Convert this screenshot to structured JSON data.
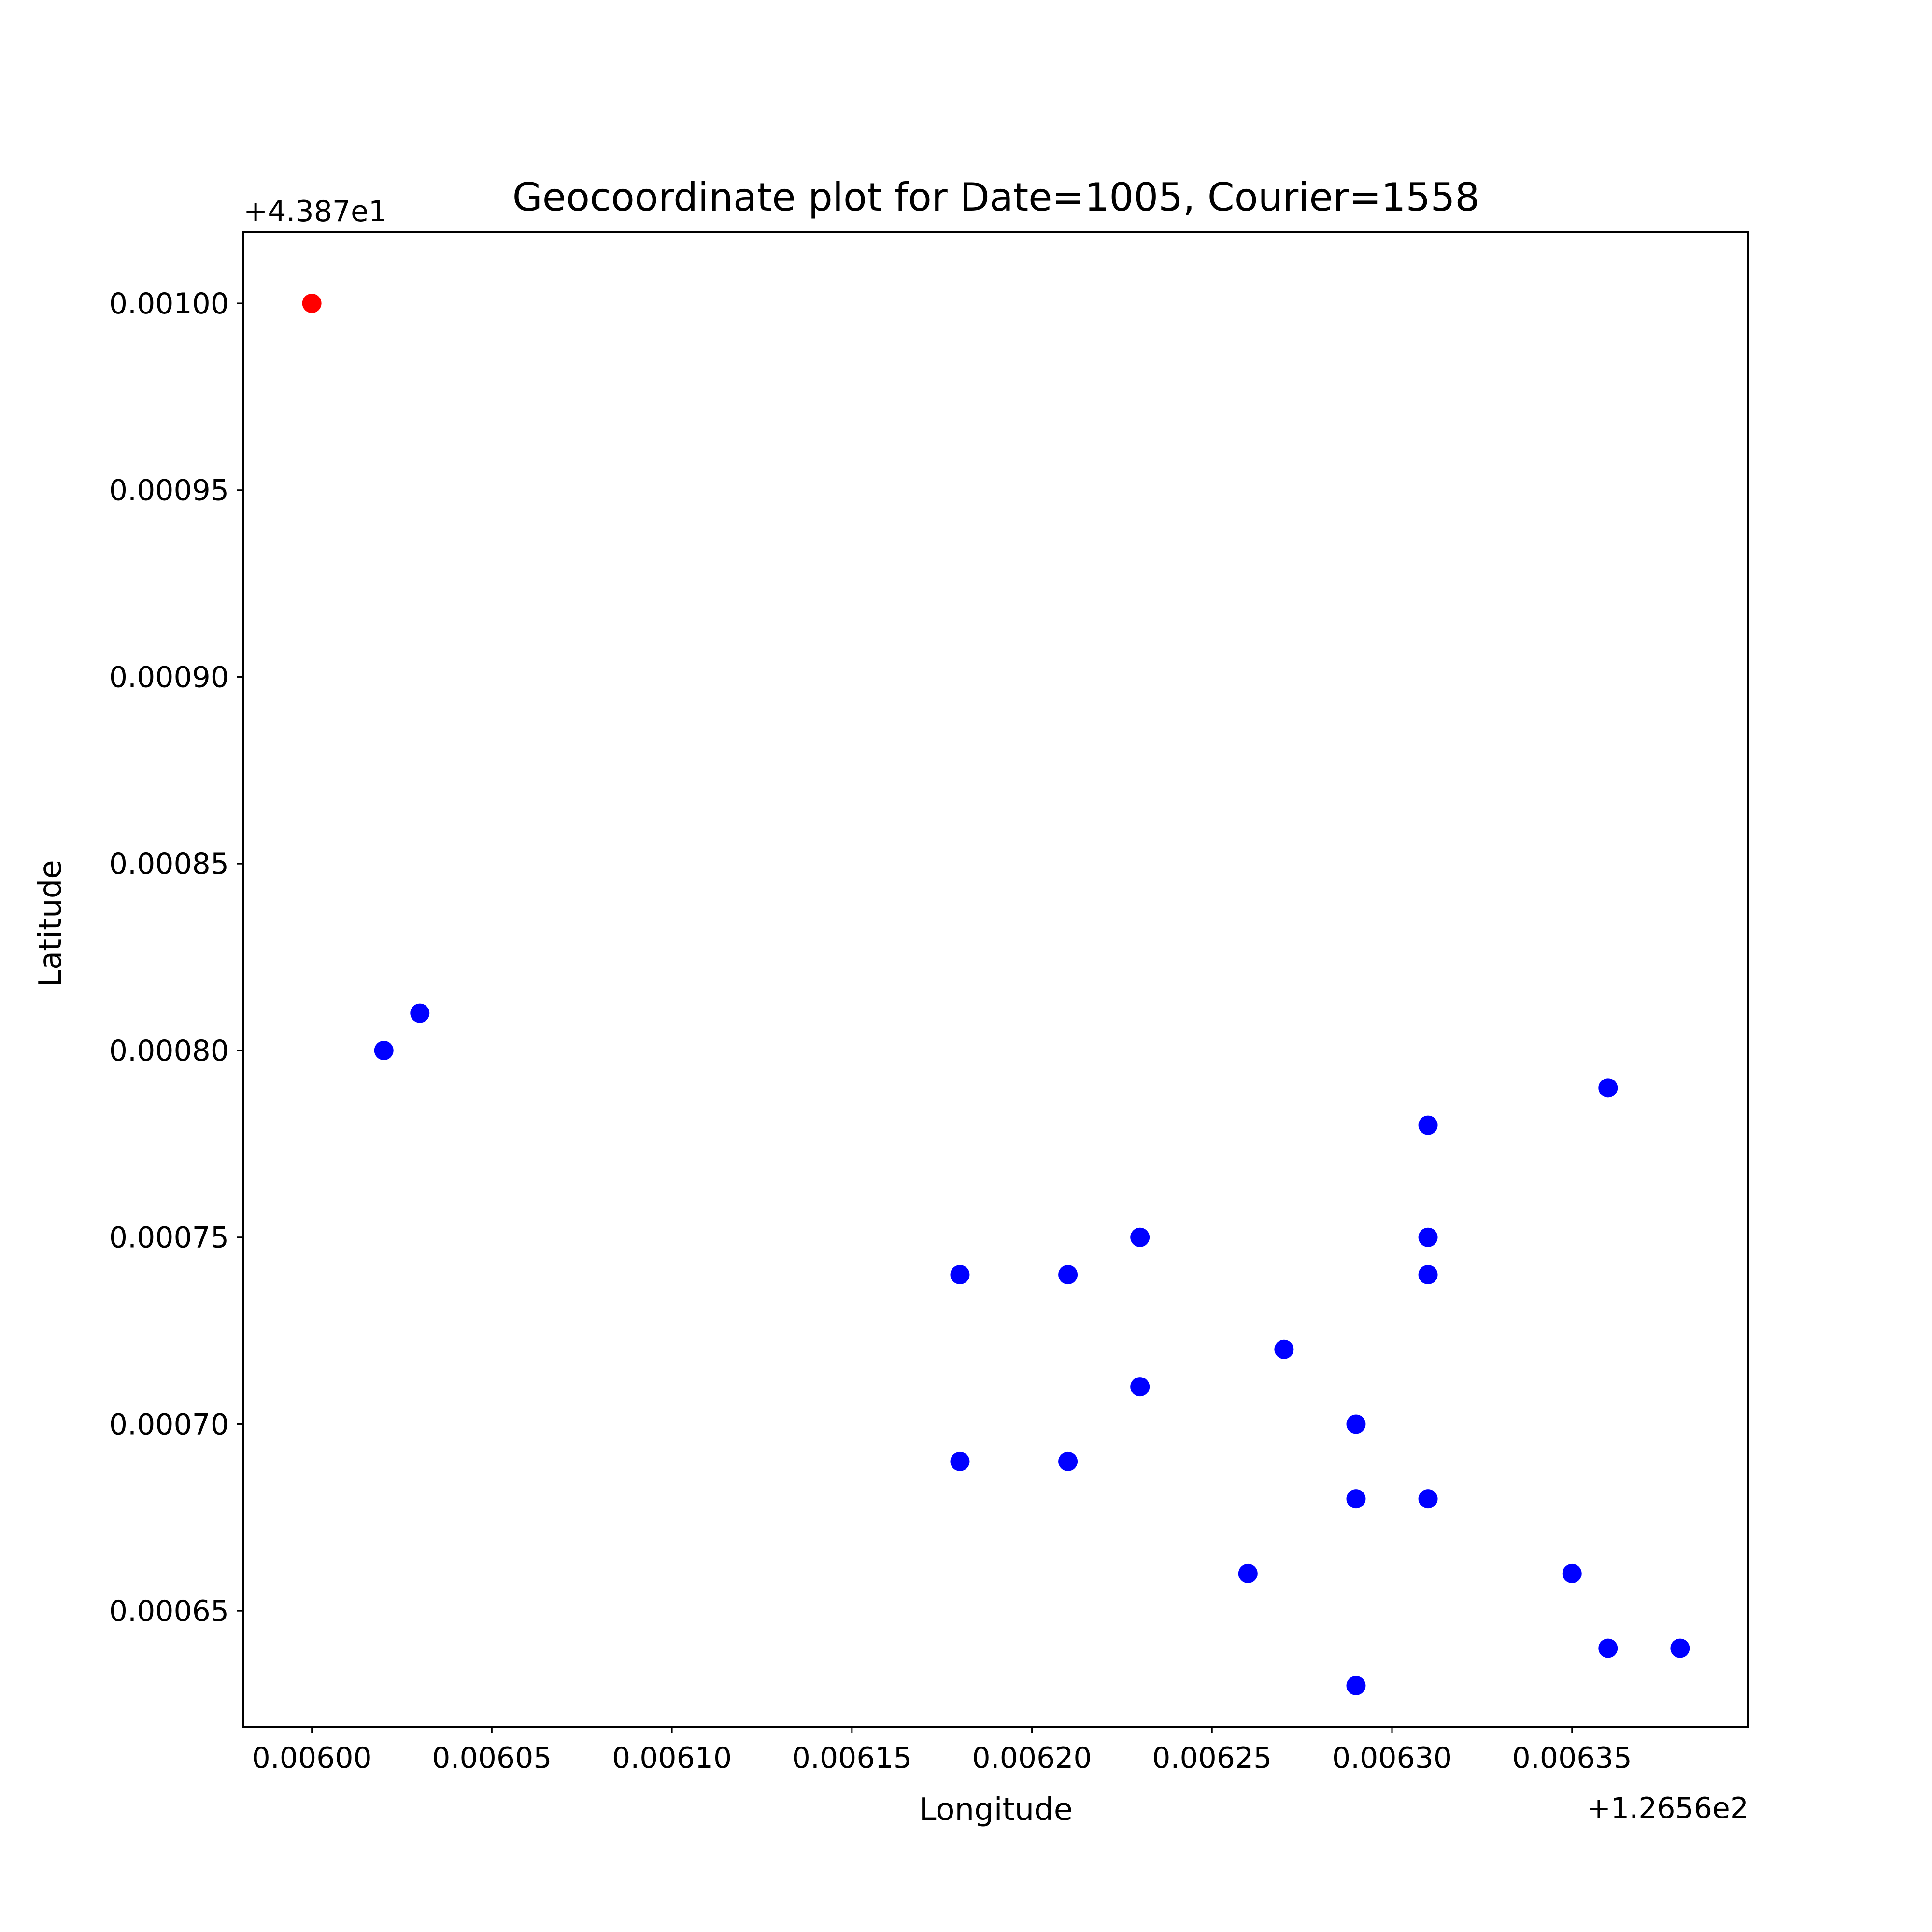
{
  "chart_data": {
    "type": "scatter",
    "title": "Geocoordinate plot for Date=1005, Courier=1558",
    "xlabel": "Longitude",
    "ylabel": "Latitude",
    "x_offset_label": "+1.2656e2",
    "y_offset_label": "+4.387e1",
    "xlim": [
      0.005981,
      0.006399
    ],
    "ylim": [
      0.000619,
      0.001019
    ],
    "x_ticks": [
      0.006,
      0.00605,
      0.0061,
      0.00615,
      0.0062,
      0.00625,
      0.0063,
      0.00635
    ],
    "x_tick_labels": [
      "0.00600",
      "0.00605",
      "0.00610",
      "0.00615",
      "0.00620",
      "0.00625",
      "0.00630",
      "0.00635"
    ],
    "y_ticks": [
      0.00065,
      0.0007,
      0.00075,
      0.0008,
      0.00085,
      0.0009,
      0.00095,
      0.001
    ],
    "y_tick_labels": [
      "0.00065",
      "0.00070",
      "0.00075",
      "0.00080",
      "0.00085",
      "0.00090",
      "0.00095",
      "0.00100"
    ],
    "grid": false,
    "series": [
      {
        "color": "#ff0000",
        "points": [
          {
            "x": 0.006,
            "y": 0.001
          }
        ]
      },
      {
        "color": "#0000ff",
        "points": [
          {
            "x": 0.00602,
            "y": 0.0008
          },
          {
            "x": 0.00603,
            "y": 0.00081
          },
          {
            "x": 0.00618,
            "y": 0.00074
          },
          {
            "x": 0.00618,
            "y": 0.00069
          },
          {
            "x": 0.00621,
            "y": 0.00074
          },
          {
            "x": 0.00621,
            "y": 0.00069
          },
          {
            "x": 0.00623,
            "y": 0.00075
          },
          {
            "x": 0.00623,
            "y": 0.00071
          },
          {
            "x": 0.00626,
            "y": 0.00066
          },
          {
            "x": 0.00627,
            "y": 0.00072
          },
          {
            "x": 0.00629,
            "y": 0.0007
          },
          {
            "x": 0.00629,
            "y": 0.00068
          },
          {
            "x": 0.00629,
            "y": 0.00063
          },
          {
            "x": 0.00631,
            "y": 0.00078
          },
          {
            "x": 0.00631,
            "y": 0.00075
          },
          {
            "x": 0.00631,
            "y": 0.00074
          },
          {
            "x": 0.00631,
            "y": 0.00068
          },
          {
            "x": 0.00635,
            "y": 0.00066
          },
          {
            "x": 0.00636,
            "y": 0.00079
          },
          {
            "x": 0.00636,
            "y": 0.00064
          },
          {
            "x": 0.00638,
            "y": 0.00064
          }
        ]
      }
    ]
  }
}
